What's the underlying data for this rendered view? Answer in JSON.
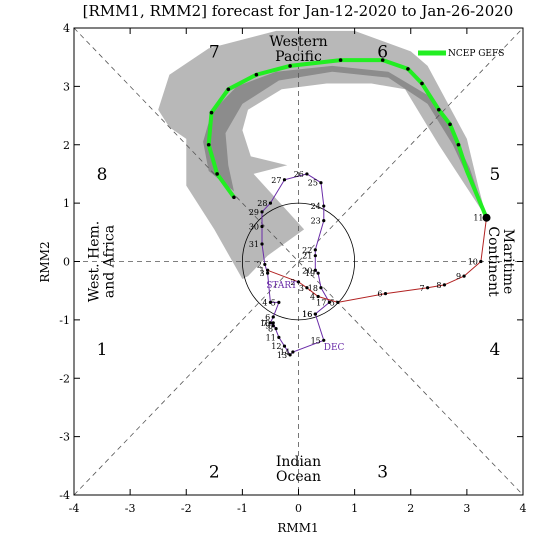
{
  "chart_data": {
    "type": "scatter",
    "title": "[RMM1, RMM2] forecast for Jan-12-2020 to Jan-26-2020",
    "xlabel": "RMM1",
    "ylabel": "RMM2",
    "xlim": [
      -4,
      4
    ],
    "ylim": [
      -4,
      4
    ],
    "xticks": [
      "-4",
      "-3",
      "-2",
      "-1",
      "0",
      "1",
      "2",
      "3",
      "4"
    ],
    "yticks": [
      "-4",
      "-3",
      "-2",
      "-1",
      "0",
      "1",
      "2",
      "3",
      "4"
    ],
    "grid": false,
    "legend_position": "top-right",
    "phase_numbers": [
      {
        "label": "1",
        "x": -3.5,
        "y": -1.5
      },
      {
        "label": "2",
        "x": -1.5,
        "y": -3.6
      },
      {
        "label": "3",
        "x": 1.5,
        "y": -3.6
      },
      {
        "label": "4",
        "x": 3.5,
        "y": -1.5
      },
      {
        "label": "5",
        "x": 3.5,
        "y": 1.5
      },
      {
        "label": "6",
        "x": 1.5,
        "y": 3.6
      },
      {
        "label": "7",
        "x": -1.5,
        "y": 3.6
      },
      {
        "label": "8",
        "x": -3.5,
        "y": 1.5
      }
    ],
    "region_labels": [
      {
        "lines": [
          "Western",
          "Pacific"
        ],
        "x": 0,
        "y": 3.65,
        "rotate": false
      },
      {
        "lines": [
          "Indian",
          "Ocean"
        ],
        "x": 0,
        "y": -3.55,
        "rotate": false
      },
      {
        "lines": [
          "West. Hem.",
          "and Africa"
        ],
        "x": -3.52,
        "y": 0,
        "rotate": true
      },
      {
        "lines": [
          "Maritime",
          "Continent"
        ],
        "x": 3.62,
        "y": 0,
        "rotate": true
      }
    ],
    "observed_dec": {
      "name": "DEC",
      "label_x": 0.45,
      "label_y": -1.52,
      "color": "#6a2ca8",
      "points": [
        {
          "d": "16",
          "x": 0.3,
          "y": -0.9
        },
        {
          "d": "15",
          "x": 0.45,
          "y": -1.35
        },
        {
          "d": "14",
          "x": -0.1,
          "y": -1.55
        },
        {
          "d": "13",
          "x": -0.15,
          "y": -1.6
        },
        {
          "d": "12",
          "x": -0.25,
          "y": -1.45
        },
        {
          "d": "11",
          "x": -0.35,
          "y": -1.3
        },
        {
          "d": "10",
          "x": -0.45,
          "y": -1.05
        },
        {
          "d": "9",
          "x": -0.45,
          "y": -1.1
        },
        {
          "d": "8",
          "x": -0.4,
          "y": -1.15
        },
        {
          "d": "7",
          "x": -0.5,
          "y": -1.05
        },
        {
          "d": "6",
          "x": -0.45,
          "y": -0.95
        },
        {
          "d": "5",
          "x": -0.35,
          "y": -0.7
        },
        {
          "d": "4",
          "x": -0.5,
          "y": -0.7
        },
        {
          "d": "3",
          "x": -0.55,
          "y": -0.2
        },
        {
          "d": "2",
          "x": -0.6,
          "y": -0.05
        },
        {
          "d": "31",
          "x": -0.65,
          "y": 0.3
        },
        {
          "d": "30",
          "x": -0.65,
          "y": 0.6
        },
        {
          "d": "29",
          "x": -0.65,
          "y": 0.85
        },
        {
          "d": "28",
          "x": -0.5,
          "y": 1.0
        },
        {
          "d": "27",
          "x": -0.25,
          "y": 1.4
        },
        {
          "d": "26",
          "x": 0.15,
          "y": 1.5
        },
        {
          "d": "25",
          "x": 0.4,
          "y": 1.35
        },
        {
          "d": "24",
          "x": 0.45,
          "y": 0.95
        },
        {
          "d": "23",
          "x": 0.45,
          "y": 0.7
        },
        {
          "d": "22",
          "x": 0.3,
          "y": 0.2
        },
        {
          "d": "21",
          "x": 0.3,
          "y": 0.1
        },
        {
          "d": "20",
          "x": 0.3,
          "y": -0.15
        },
        {
          "d": "19",
          "x": 0.35,
          "y": -0.2
        },
        {
          "d": "18",
          "x": 0.4,
          "y": -0.45
        },
        {
          "d": "17",
          "x": 0.55,
          "y": -0.7
        },
        {
          "d": "16",
          "x": 0.3,
          "y": -0.9
        }
      ]
    },
    "observed_jan": {
      "start_label": "START",
      "start_x": -0.3,
      "start_y": -0.45,
      "color": "#b22222",
      "points": [
        {
          "d": "1",
          "x": -0.55,
          "y": -0.15
        },
        {
          "d": "2",
          "x": 0.0,
          "y": -0.35
        },
        {
          "d": "3",
          "x": 0.15,
          "y": -0.45
        },
        {
          "d": "4",
          "x": 0.35,
          "y": -0.6
        },
        {
          "d": "5",
          "x": 0.7,
          "y": -0.7
        },
        {
          "d": "6",
          "x": 1.55,
          "y": -0.55
        },
        {
          "d": "7",
          "x": 2.3,
          "y": -0.45
        },
        {
          "d": "8",
          "x": 2.6,
          "y": -0.4
        },
        {
          "d": "9",
          "x": 2.95,
          "y": -0.25
        },
        {
          "d": "10",
          "x": 3.25,
          "y": 0.0
        },
        {
          "d": "11",
          "x": 3.35,
          "y": 0.75
        }
      ]
    },
    "ensemble_mean": {
      "name": "NCEP GEFS",
      "color": "#22ee22",
      "points": [
        {
          "x": 3.35,
          "y": 0.75
        },
        {
          "x": 3.0,
          "y": 1.55
        },
        {
          "x": 2.85,
          "y": 2.0
        },
        {
          "x": 2.7,
          "y": 2.35
        },
        {
          "x": 2.5,
          "y": 2.6
        },
        {
          "x": 2.2,
          "y": 3.05
        },
        {
          "x": 1.95,
          "y": 3.3
        },
        {
          "x": 1.5,
          "y": 3.45
        },
        {
          "x": 0.75,
          "y": 3.45
        },
        {
          "x": -0.15,
          "y": 3.35
        },
        {
          "x": -0.75,
          "y": 3.2
        },
        {
          "x": -1.25,
          "y": 2.95
        },
        {
          "x": -1.55,
          "y": 2.55
        },
        {
          "x": -1.6,
          "y": 2.0
        },
        {
          "x": -1.45,
          "y": 1.5
        },
        {
          "x": -1.15,
          "y": 1.1
        }
      ],
      "dots": [
        {
          "x": 2.85,
          "y": 2.0
        },
        {
          "x": 2.7,
          "y": 2.35
        },
        {
          "x": 2.5,
          "y": 2.6
        },
        {
          "x": 2.2,
          "y": 3.05
        },
        {
          "x": 1.95,
          "y": 3.3
        },
        {
          "x": 1.5,
          "y": 3.45
        },
        {
          "x": 0.75,
          "y": 3.45
        },
        {
          "x": -0.15,
          "y": 3.35
        },
        {
          "x": -0.75,
          "y": 3.2
        },
        {
          "x": -1.25,
          "y": 2.95
        },
        {
          "x": -1.55,
          "y": 2.55
        },
        {
          "x": -1.6,
          "y": 2.0
        },
        {
          "x": -1.45,
          "y": 1.5
        },
        {
          "x": -1.15,
          "y": 1.1
        }
      ]
    },
    "spread_outer": [
      [
        3.35,
        0.75
      ],
      [
        3.2,
        1.3
      ],
      [
        3.0,
        2.1
      ],
      [
        2.3,
        3.35
      ],
      [
        2.0,
        3.6
      ],
      [
        1.0,
        3.95
      ],
      [
        -0.4,
        3.95
      ],
      [
        -1.6,
        3.65
      ],
      [
        -2.3,
        3.2
      ],
      [
        -2.5,
        2.6
      ],
      [
        -2.3,
        2.3
      ],
      [
        -2.0,
        2.1
      ],
      [
        -2.0,
        1.3
      ],
      [
        -1.5,
        0.55
      ],
      [
        -1.0,
        -0.3
      ],
      [
        -0.9,
        -0.25
      ],
      [
        -0.55,
        0.1
      ],
      [
        0.1,
        0.55
      ],
      [
        -0.8,
        1.5
      ],
      [
        -0.2,
        1.65
      ],
      [
        -0.85,
        1.8
      ],
      [
        -1.0,
        2.25
      ],
      [
        -0.9,
        2.6
      ],
      [
        -0.3,
        2.95
      ],
      [
        0.5,
        3.05
      ],
      [
        1.3,
        3.05
      ],
      [
        1.9,
        2.95
      ],
      [
        2.5,
        2.0
      ],
      [
        3.35,
        0.75
      ]
    ],
    "spread_inner": [
      [
        3.35,
        0.75
      ],
      [
        3.05,
        1.6
      ],
      [
        2.7,
        2.3
      ],
      [
        2.3,
        2.85
      ],
      [
        1.6,
        3.25
      ],
      [
        0.6,
        3.35
      ],
      [
        -0.4,
        3.25
      ],
      [
        -1.1,
        3.0
      ],
      [
        -1.55,
        2.55
      ],
      [
        -1.7,
        2.05
      ],
      [
        -1.6,
        1.55
      ],
      [
        -1.15,
        1.2
      ],
      [
        -1.25,
        1.65
      ],
      [
        -1.3,
        2.2
      ],
      [
        -1.0,
        2.7
      ],
      [
        -0.35,
        3.1
      ],
      [
        0.6,
        3.25
      ],
      [
        1.6,
        3.15
      ],
      [
        2.3,
        2.7
      ],
      [
        2.75,
        2.0
      ],
      [
        3.35,
        0.75
      ]
    ]
  },
  "legend": {
    "label": "NCEP GEFS",
    "color": "#22ee22"
  }
}
